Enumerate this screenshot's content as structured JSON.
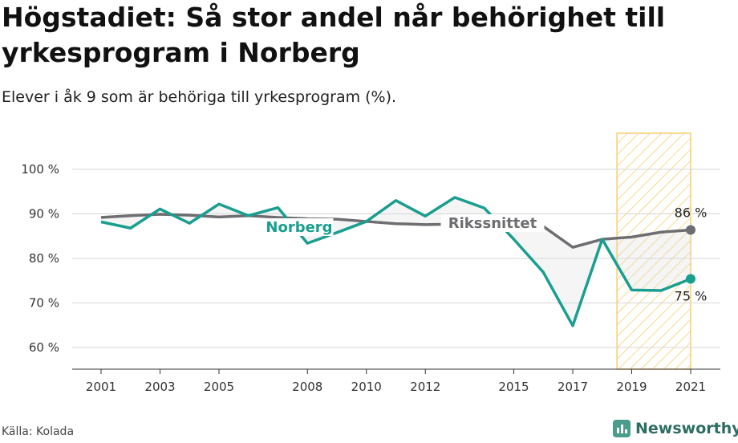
{
  "title": "Högstadiet: Så stor andel når behörighet till yrkesprogram i Norberg",
  "subtitle": "Elever i åk 9 som är behöriga till yrkesprogram (%).",
  "source": "Källa: Kolada",
  "brand": "Newsworthy",
  "colors": {
    "norberg": "#1a9e8f",
    "riket": "#6e6e72",
    "highlight": "#f5c95a",
    "grid": "#d6d6d6"
  },
  "chart_data": {
    "type": "line",
    "title": "Högstadiet: Så stor andel når behörighet till yrkesprogram i Norberg",
    "subtitle": "Elever i åk 9 som är behöriga till yrkesprogram (%).",
    "x": [
      2001,
      2002,
      2003,
      2004,
      2005,
      2006,
      2007,
      2008,
      2009,
      2010,
      2011,
      2012,
      2013,
      2014,
      2015,
      2016,
      2017,
      2018,
      2019,
      2020,
      2021
    ],
    "x_tick_labels": [
      "2001",
      "2003",
      "2005",
      "2008",
      "2010",
      "2012",
      "2015",
      "2017",
      "2019",
      "2021"
    ],
    "ylim": [
      55,
      100
    ],
    "y_ticks": [
      60,
      70,
      80,
      90,
      100
    ],
    "y_tick_labels": [
      "60 %",
      "70 %",
      "80 %",
      "90 %",
      "100 %"
    ],
    "grid": true,
    "series": [
      {
        "name": "Norberg",
        "values": [
          88.2,
          86.8,
          91.1,
          87.9,
          92.2,
          89.6,
          91.4,
          83.4,
          85.8,
          88.3,
          93.0,
          89.5,
          93.7,
          91.3,
          84.3,
          76.9,
          64.9,
          84.3,
          72.9,
          72.8,
          75.4
        ]
      },
      {
        "name": "Rikssnittet",
        "values": [
          89.2,
          89.6,
          89.9,
          89.7,
          89.3,
          89.6,
          89.2,
          88.9,
          88.8,
          88.3,
          87.8,
          87.6,
          87.7,
          87.5,
          87.3,
          87.2,
          82.5,
          84.3,
          84.8,
          85.9,
          86.4
        ]
      }
    ],
    "end_labels": {
      "riket": "86 %",
      "norberg": "75 %"
    },
    "highlight_range": [
      2018.5,
      2021
    ]
  }
}
